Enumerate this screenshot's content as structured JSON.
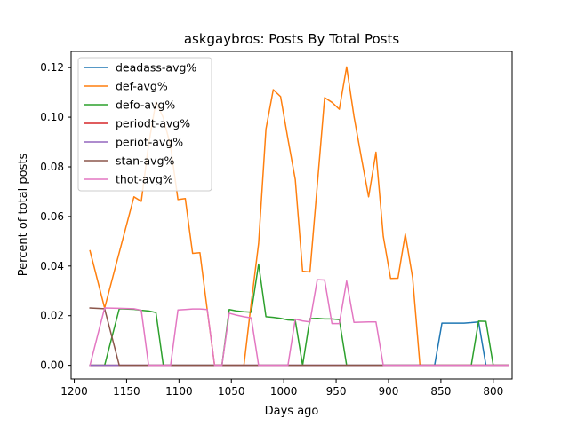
{
  "chart_data": {
    "type": "line",
    "title": "askgaybros: Posts By Total Posts",
    "xlabel": "Days ago",
    "ylabel": "Percent of total posts",
    "xlim": [
      1203,
      782
    ],
    "ylim": [
      -0.0055,
      0.1265
    ],
    "x_inverted": true,
    "x_ticks": [
      1200,
      1150,
      1100,
      1050,
      1000,
      950,
      900,
      850,
      800
    ],
    "y_ticks": [
      0.0,
      0.02,
      0.04,
      0.06,
      0.08,
      0.1,
      0.12
    ],
    "x_tick_labels": [
      "1200",
      "1150",
      "1100",
      "1050",
      "1000",
      "950",
      "900",
      "850",
      "800"
    ],
    "y_tick_labels": [
      "0.00",
      "0.02",
      "0.04",
      "0.06",
      "0.08",
      "0.10",
      "0.12"
    ],
    "grid": false,
    "legend_position": "upper-left",
    "x": [
      1185,
      1171,
      1157,
      1143,
      1136,
      1129,
      1122,
      1115,
      1108,
      1101,
      1094,
      1087,
      1080,
      1073,
      1066,
      1059,
      1052,
      1045,
      1038,
      1031,
      1024,
      1017,
      1010,
      1003,
      996,
      989,
      982,
      975,
      968,
      961,
      954,
      947,
      940,
      933,
      926,
      919,
      912,
      905,
      898,
      891,
      884,
      877,
      870,
      863,
      856,
      849,
      842,
      835,
      828,
      821,
      814,
      807,
      800,
      793,
      786
    ],
    "series": [
      {
        "name": "deadass-avg%",
        "color": "#1f77b4",
        "values": [
          0,
          0,
          0,
          0,
          0,
          0,
          0,
          0,
          0,
          0,
          0,
          0,
          0,
          0,
          0,
          0,
          0,
          0,
          0,
          0,
          0,
          0,
          0,
          0,
          0,
          0,
          0,
          0,
          0,
          0,
          0,
          0,
          0,
          0,
          0,
          0,
          0,
          0,
          0,
          0,
          0,
          0,
          0,
          0,
          0,
          0.017,
          0.017,
          0.017,
          0.017,
          0.0172,
          0.0175,
          0,
          0,
          0,
          0
        ]
      },
      {
        "name": "def-avg%",
        "color": "#ff7f0e",
        "values": [
          0.0462,
          0.0231,
          0.0455,
          0.0679,
          0.0661,
          0.0889,
          0.1063,
          0.0998,
          0.0884,
          0.0668,
          0.0672,
          0.0451,
          0.0454,
          0.0223,
          0,
          0,
          0,
          0,
          0,
          0.0252,
          0.0491,
          0.0952,
          0.1111,
          0.1083,
          0.0912,
          0.0749,
          0.0379,
          0.0376,
          0.0726,
          0.1079,
          0.106,
          0.1032,
          0.1203,
          0.1004,
          0.0839,
          0.0679,
          0.0859,
          0.052,
          0.035,
          0.0351,
          0.0529,
          0.0353,
          0,
          0,
          0,
          0,
          0,
          0,
          0,
          0,
          0,
          0,
          0,
          0,
          0
        ]
      },
      {
        "name": "defo-avg%",
        "color": "#2ca02c",
        "values": [
          0,
          0,
          0.0228,
          0.0226,
          0.0222,
          0.0219,
          0.0213,
          0,
          0,
          0,
          0,
          0,
          0,
          0,
          0,
          0,
          0.0225,
          0.0219,
          0.0216,
          0.0214,
          0.0408,
          0.0196,
          0.0193,
          0.0189,
          0.0183,
          0.0181,
          0,
          0.0188,
          0.0189,
          0.0187,
          0.0187,
          0.0184,
          0,
          0,
          0,
          0,
          0,
          0,
          0,
          0,
          0,
          0,
          0,
          0,
          0,
          0,
          0,
          0,
          0,
          0,
          0.0178,
          0.0177,
          0,
          0,
          0
        ]
      },
      {
        "name": "periodt-avg%",
        "color": "#d62728",
        "values": [
          0,
          0,
          0,
          0,
          0,
          0,
          0,
          0,
          0,
          0,
          0,
          0,
          0,
          0,
          0,
          0,
          0,
          0,
          0,
          0,
          0,
          0,
          0,
          0,
          0,
          0,
          0,
          0,
          0,
          0,
          0,
          0,
          0,
          0,
          0,
          0,
          0,
          0,
          0,
          0,
          0,
          0,
          0,
          0,
          0,
          0,
          0,
          0,
          0,
          0,
          0,
          0,
          0,
          0,
          0
        ]
      },
      {
        "name": "periot-avg%",
        "color": "#9467bd",
        "values": [
          0,
          0,
          0,
          0,
          0,
          0,
          0,
          0,
          0,
          0,
          0,
          0,
          0,
          0,
          0,
          0,
          0,
          0,
          0,
          0,
          0,
          0,
          0,
          0,
          0,
          0,
          0,
          0,
          0,
          0,
          0,
          0,
          0,
          0,
          0,
          0,
          0,
          0,
          0,
          0,
          0,
          0,
          0,
          0,
          0,
          0,
          0,
          0,
          0,
          0,
          0,
          0,
          0,
          0,
          0
        ]
      },
      {
        "name": "stan-avg%",
        "color": "#8c564b",
        "values": [
          0.0231,
          0.0228,
          0,
          0,
          0,
          0,
          0,
          0,
          0,
          0,
          0,
          0,
          0,
          0,
          0,
          0,
          0,
          0,
          0,
          0,
          0,
          0,
          0,
          0,
          0,
          0,
          0,
          0,
          0,
          0,
          0,
          0,
          0,
          0,
          0,
          0,
          0,
          0,
          0,
          0,
          0,
          0,
          0,
          0,
          0,
          0,
          0,
          0,
          0,
          0,
          0,
          0,
          0,
          0,
          0
        ]
      },
      {
        "name": "thot-avg%",
        "color": "#e377c2",
        "values": [
          0,
          0.0231,
          0.023,
          0.0228,
          0.0222,
          0,
          0,
          0,
          0,
          0.0223,
          0.0225,
          0.0227,
          0.0227,
          0.0225,
          0,
          0,
          0.021,
          0.0202,
          0.0196,
          0.0191,
          0,
          0,
          0,
          0,
          0,
          0.0186,
          0.0179,
          0.0175,
          0.0345,
          0.0344,
          0.0168,
          0.0168,
          0.034,
          0.0173,
          0.0174,
          0.0175,
          0.0175,
          0,
          0,
          0,
          0,
          0,
          0,
          0,
          0,
          0,
          0,
          0,
          0,
          0,
          0,
          0,
          0,
          0,
          0
        ]
      }
    ]
  }
}
